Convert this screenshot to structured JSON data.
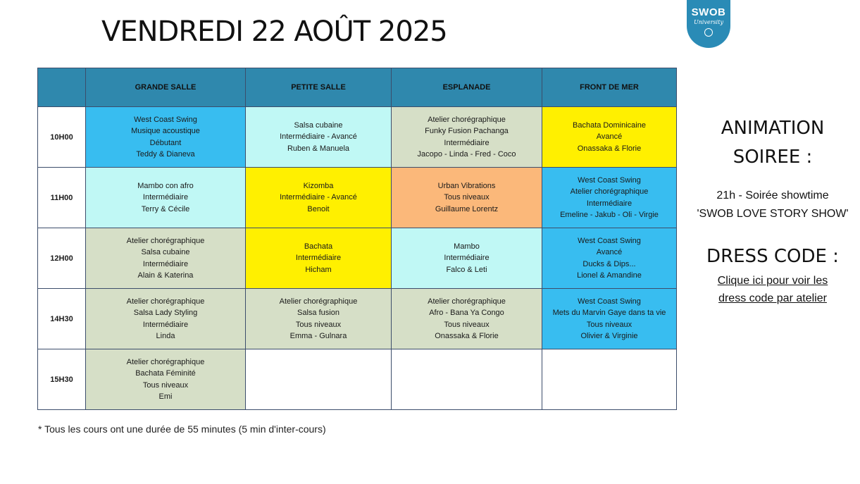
{
  "title": "VENDREDI 22 AOÛT 2025",
  "logo": {
    "text": "SWOB",
    "subtext": "University"
  },
  "columns": [
    "",
    "GRANDE SALLE",
    "PETITE SALLE",
    "ESPLANADE",
    "FRONT DE MER"
  ],
  "rows": [
    {
      "time": "10H00",
      "cells": [
        {
          "lines": [
            "West Coast Swing",
            "Musique acoustique",
            "Débutant",
            "Teddy & Dianeva"
          ],
          "color": "blue"
        },
        {
          "lines": [
            "Salsa cubaine",
            "Intermédiaire - Avancé",
            "Ruben & Manuela"
          ],
          "color": "cyan"
        },
        {
          "lines": [
            "Atelier chorégraphique",
            "Funky Fusion Pachanga",
            "Intermédiaire",
            "Jacopo - Linda - Fred - Coco"
          ],
          "color": "sage"
        },
        {
          "lines": [
            "Bachata Dominicaine",
            "Avancé",
            "Onassaka & Florie"
          ],
          "color": "yellow"
        }
      ]
    },
    {
      "time": "11H00",
      "cells": [
        {
          "lines": [
            "Mambo con afro",
            "Intermédiaire",
            "Terry & Cécile"
          ],
          "color": "cyan"
        },
        {
          "lines": [
            "Kizomba",
            "Intermédiaire - Avancé",
            "Benoit"
          ],
          "color": "yellow"
        },
        {
          "lines": [
            "Urban Vibrations",
            "Tous niveaux",
            "Guillaume Lorentz"
          ],
          "color": "orange"
        },
        {
          "lines": [
            "West Coast Swing",
            "Atelier chorégraphique",
            "Intermédiaire",
            "Emeline - Jakub - Oli - Virgie"
          ],
          "color": "blue"
        }
      ]
    },
    {
      "time": "12H00",
      "cells": [
        {
          "lines": [
            "Atelier chorégraphique",
            "Salsa cubaine",
            "Intermédiaire",
            "Alain & Katerina"
          ],
          "color": "sage"
        },
        {
          "lines": [
            "Bachata",
            "Intermédiaire",
            "Hicham"
          ],
          "color": "yellow"
        },
        {
          "lines": [
            "Mambo",
            "Intermédiaire",
            "Falco & Leti"
          ],
          "color": "cyan"
        },
        {
          "lines": [
            "West Coast Swing",
            "Avancé",
            "Ducks & Dips...",
            "Lionel & Amandine"
          ],
          "color": "blue"
        }
      ]
    },
    {
      "time": "14H30",
      "cells": [
        {
          "lines": [
            "Atelier chorégraphique",
            "Salsa Lady Styling",
            "Intermédiaire",
            "Linda"
          ],
          "color": "sage"
        },
        {
          "lines": [
            "Atelier chorégraphique",
            "Salsa fusion",
            "Tous niveaux",
            "Emma - Gulnara"
          ],
          "color": "sage"
        },
        {
          "lines": [
            "Atelier chorégraphique",
            "Afro - Bana Ya Congo",
            "Tous niveaux",
            "Onassaka & Florie"
          ],
          "color": "sage"
        },
        {
          "lines": [
            "West Coast Swing",
            "Mets du Marvin Gaye dans ta vie",
            "Tous niveaux",
            "Olivier & Virginie"
          ],
          "color": "blue"
        }
      ]
    },
    {
      "time": "15H30",
      "cells": [
        {
          "lines": [
            "Atelier chorégraphique",
            "Bachata Féminité",
            "Tous niveaux",
            "Emi"
          ],
          "color": "sage"
        },
        {
          "lines": [],
          "color": "white"
        },
        {
          "lines": [],
          "color": "white"
        },
        {
          "lines": [],
          "color": "white"
        }
      ]
    }
  ],
  "footnote": "* Tous les cours ont une durée de 55 minutes (5 min d'inter-cours)",
  "animation": {
    "title_line1": "ANIMATION",
    "title_line2": "SOIREE :",
    "line1": "21h - Soirée showtime",
    "line2": "'SWOB LOVE STORY SHOW'"
  },
  "dress_code": {
    "title": "DRESS CODE :",
    "link_line1": "Clique ici pour voir les",
    "link_line2": "dress code par atelier"
  },
  "colors": {
    "header": "#2f88ad",
    "blue": "#38bdf0",
    "cyan": "#c0f8f5",
    "sage": "#d6dfc7",
    "yellow": "#fff000",
    "orange": "#fbb87a",
    "logo": "#2a8bb6"
  }
}
